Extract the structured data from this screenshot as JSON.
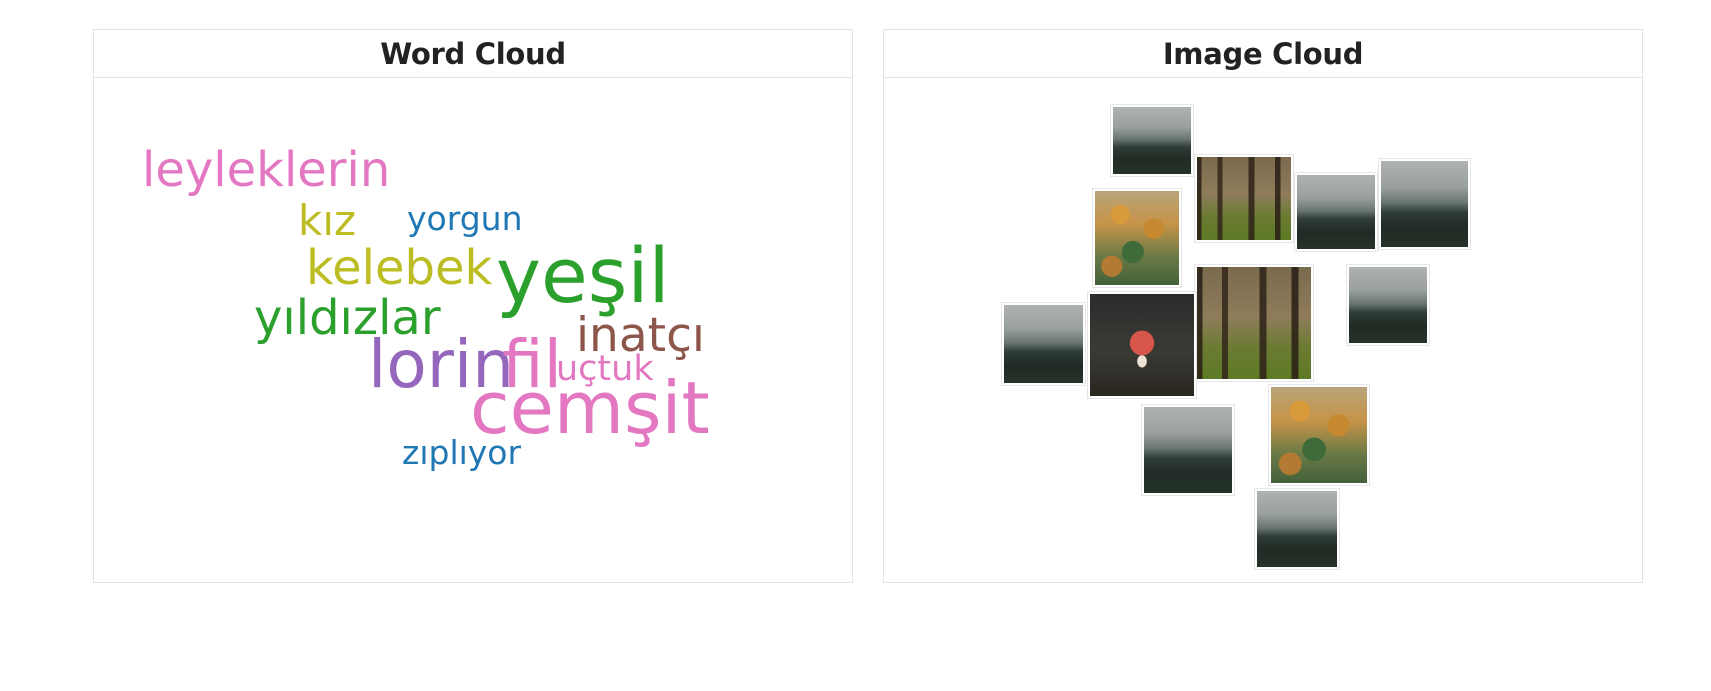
{
  "panels": {
    "word_cloud": {
      "title": "Word Cloud",
      "words": [
        {
          "text": "leyleklerin",
          "color": "#e377c2"
        },
        {
          "text": "kız",
          "color": "#bcbd22"
        },
        {
          "text": "yorgun",
          "color": "#1f77b4"
        },
        {
          "text": "kelebek",
          "color": "#bcbd22"
        },
        {
          "text": "yeşil",
          "color": "#2ca02c"
        },
        {
          "text": "yıldızlar",
          "color": "#2ca02c"
        },
        {
          "text": "inatçı",
          "color": "#8c564b"
        },
        {
          "text": "lorin",
          "color": "#9467bd"
        },
        {
          "text": "fil",
          "color": "#e377c2"
        },
        {
          "text": "uçtuk",
          "color": "#e377c2"
        },
        {
          "text": "cemşit",
          "color": "#e377c2"
        },
        {
          "text": "zıplıyor",
          "color": "#1f77b4"
        }
      ]
    },
    "image_cloud": {
      "title": "Image Cloud",
      "images": [
        {
          "subject": "foggy-forest-image"
        },
        {
          "subject": "forest-trunks-image"
        },
        {
          "subject": "foggy-forest-image"
        },
        {
          "subject": "foggy-forest-image"
        },
        {
          "subject": "autumn-forest-image"
        },
        {
          "subject": "forest-trunks-image"
        },
        {
          "subject": "foggy-forest-image"
        },
        {
          "subject": "foggy-forest-image"
        },
        {
          "subject": "mushroom-image"
        },
        {
          "subject": "foggy-forest-image"
        },
        {
          "subject": "autumn-forest-image"
        },
        {
          "subject": "foggy-forest-image"
        }
      ]
    }
  }
}
